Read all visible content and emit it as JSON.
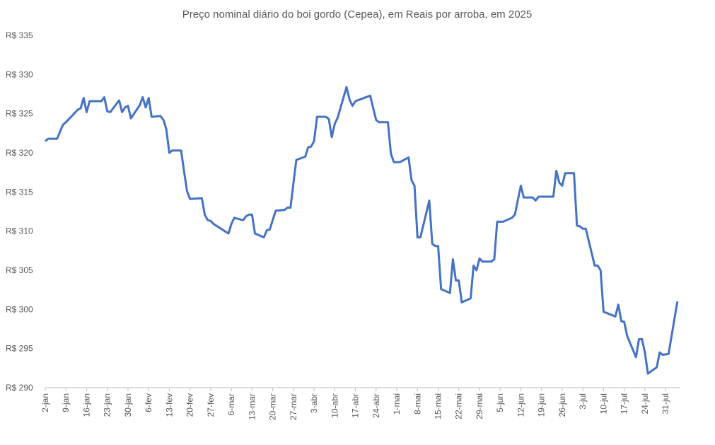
{
  "chart_data": {
    "type": "line",
    "title": "Preço nominal diário do boi gordo (Cepea), em Reais por arroba, em 2025",
    "xlabel": "",
    "ylabel": "",
    "ylim": [
      290,
      335
    ],
    "xlim": [
      "2025-01-02",
      "2025-08-05"
    ],
    "grid": false,
    "line_color": "#4472C4",
    "y_tick_values": [
      290,
      295,
      300,
      305,
      310,
      315,
      320,
      325,
      330,
      335
    ],
    "y_tick_labels": [
      "R$ 290",
      "R$ 295",
      "R$ 300",
      "R$ 305",
      "R$ 310",
      "R$ 315",
      "R$ 320",
      "R$ 325",
      "R$ 330",
      "R$ 335"
    ],
    "x_tick_dates": [
      "2025-01-02",
      "2025-01-09",
      "2025-01-16",
      "2025-01-23",
      "2025-01-30",
      "2025-02-06",
      "2025-02-13",
      "2025-02-20",
      "2025-02-27",
      "2025-03-06",
      "2025-03-13",
      "2025-03-20",
      "2025-03-27",
      "2025-04-03",
      "2025-04-10",
      "2025-04-17",
      "2025-04-24",
      "2025-05-01",
      "2025-05-08",
      "2025-05-15",
      "2025-05-22",
      "2025-05-29",
      "2025-06-05",
      "2025-06-12",
      "2025-06-19",
      "2025-06-26",
      "2025-07-03",
      "2025-07-10",
      "2025-07-17",
      "2025-07-24",
      "2025-07-31"
    ],
    "x_tick_labels": [
      "2-jan",
      "9-jan",
      "16-jan",
      "23-jan",
      "30-jan",
      "6-fev",
      "13-fev",
      "20-fev",
      "27-fev",
      "6-mar",
      "13-mar",
      "20-mar",
      "27-mar",
      "3-abr",
      "10-abr",
      "17-abr",
      "24-abr",
      "1-mai",
      "8-mai",
      "15-mai",
      "22-mai",
      "29-mai",
      "5-jun",
      "12-jun",
      "19-jun",
      "26-jun",
      "3-jul",
      "10-jul",
      "17-jul",
      "24-jul",
      "31-jul"
    ],
    "series": [
      {
        "x": [
          "2025-01-02",
          "2025-01-03",
          "2025-01-06",
          "2025-01-08",
          "2025-01-09",
          "2025-01-13",
          "2025-01-14",
          "2025-01-15",
          "2025-01-16",
          "2025-01-17",
          "2025-01-21",
          "2025-01-22",
          "2025-01-23",
          "2025-01-24",
          "2025-01-27",
          "2025-01-28",
          "2025-01-29",
          "2025-01-30",
          "2025-01-31",
          "2025-02-03",
          "2025-02-04",
          "2025-02-05",
          "2025-02-06",
          "2025-02-07",
          "2025-02-10",
          "2025-02-11",
          "2025-02-12",
          "2025-02-13",
          "2025-02-14",
          "2025-02-17",
          "2025-02-18",
          "2025-02-19",
          "2025-02-20",
          "2025-02-24",
          "2025-02-25",
          "2025-02-26",
          "2025-02-27",
          "2025-02-28",
          "2025-03-05",
          "2025-03-06",
          "2025-03-07",
          "2025-03-10",
          "2025-03-11",
          "2025-03-12",
          "2025-03-13",
          "2025-03-14",
          "2025-03-17",
          "2025-03-18",
          "2025-03-19",
          "2025-03-21",
          "2025-03-24",
          "2025-03-25",
          "2025-03-26",
          "2025-03-28",
          "2025-03-31",
          "2025-04-01",
          "2025-04-02",
          "2025-04-03",
          "2025-04-04",
          "2025-04-07",
          "2025-04-08",
          "2025-04-09",
          "2025-04-10",
          "2025-04-11",
          "2025-04-14",
          "2025-04-15",
          "2025-04-16",
          "2025-04-17",
          "2025-04-22",
          "2025-04-24",
          "2025-04-25",
          "2025-04-28",
          "2025-04-29",
          "2025-04-30",
          "2025-05-02",
          "2025-05-05",
          "2025-05-06",
          "2025-05-07",
          "2025-05-08",
          "2025-05-09",
          "2025-05-12",
          "2025-05-13",
          "2025-05-14",
          "2025-05-15",
          "2025-05-16",
          "2025-05-19",
          "2025-05-20",
          "2025-05-21",
          "2025-05-22",
          "2025-05-23",
          "2025-05-26",
          "2025-05-27",
          "2025-05-28",
          "2025-05-29",
          "2025-05-30",
          "2025-06-02",
          "2025-06-03",
          "2025-06-04",
          "2025-06-06",
          "2025-06-09",
          "2025-06-10",
          "2025-06-11",
          "2025-06-12",
          "2025-06-13",
          "2025-06-16",
          "2025-06-17",
          "2025-06-18",
          "2025-06-23",
          "2025-06-24",
          "2025-06-25",
          "2025-06-26",
          "2025-06-27",
          "2025-06-30",
          "2025-07-01",
          "2025-07-02",
          "2025-07-03",
          "2025-07-04",
          "2025-07-07",
          "2025-07-08",
          "2025-07-09",
          "2025-07-10",
          "2025-07-14",
          "2025-07-15",
          "2025-07-16",
          "2025-07-17",
          "2025-07-18",
          "2025-07-21",
          "2025-07-22",
          "2025-07-23",
          "2025-07-24",
          "2025-07-25",
          "2025-07-28",
          "2025-07-29",
          "2025-07-30",
          "2025-08-01",
          "2025-08-04"
        ],
        "y": [
          321.5,
          321.8,
          321.8,
          323.6,
          323.9,
          325.5,
          325.7,
          327.0,
          325.2,
          326.6,
          326.6,
          327.1,
          325.3,
          325.2,
          326.7,
          325.2,
          325.8,
          326.0,
          324.4,
          326.1,
          327.1,
          325.8,
          327.0,
          324.6,
          324.7,
          324.2,
          323.0,
          320.0,
          320.3,
          320.3,
          317.6,
          315.1,
          314.1,
          314.2,
          312.1,
          311.4,
          311.3,
          310.9,
          309.7,
          310.9,
          311.7,
          311.4,
          311.9,
          312.1,
          312.1,
          309.7,
          309.2,
          310.1,
          310.2,
          312.6,
          312.7,
          313.0,
          313.0,
          319.1,
          319.5,
          320.7,
          320.8,
          321.5,
          324.6,
          324.6,
          324.3,
          322.0,
          323.7,
          324.5,
          328.4,
          326.8,
          326.0,
          326.6,
          327.3,
          324.2,
          323.9,
          323.9,
          319.9,
          318.8,
          318.8,
          319.4,
          316.5,
          315.8,
          309.2,
          309.2,
          313.9,
          308.4,
          308.1,
          308.1,
          302.6,
          302.1,
          306.4,
          303.7,
          303.7,
          300.9,
          301.4,
          305.6,
          305.0,
          306.5,
          306.1,
          306.1,
          306.4,
          311.2,
          311.2,
          311.7,
          312.1,
          314.0,
          315.8,
          314.3,
          314.3,
          313.9,
          314.4,
          314.4,
          317.7,
          316.2,
          315.8,
          317.4,
          317.4,
          310.7,
          310.6,
          310.3,
          310.3,
          305.6,
          305.6,
          305.0,
          299.7,
          299.1,
          300.6,
          298.5,
          298.4,
          296.6,
          293.9,
          296.2,
          296.2,
          294.5,
          291.8,
          292.6,
          294.5,
          294.2,
          294.3,
          301.0
        ]
      }
    ]
  }
}
